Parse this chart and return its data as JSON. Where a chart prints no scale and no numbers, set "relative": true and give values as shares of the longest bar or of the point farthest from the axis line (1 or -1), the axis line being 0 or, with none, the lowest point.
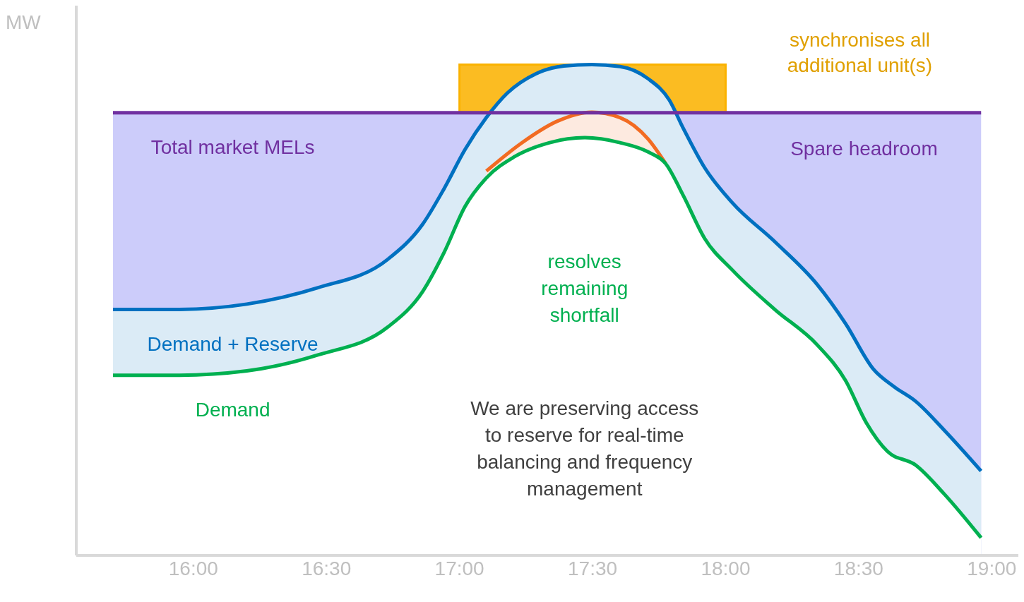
{
  "chart_data": {
    "type": "area",
    "relative": true,
    "ylabel": "MW",
    "xlim": [
      15.56,
      19.1
    ],
    "xticks": [
      {
        "value": 16,
        "label": "16:00"
      },
      {
        "value": 16.5,
        "label": "16:30"
      },
      {
        "value": 17,
        "label": "17:00"
      },
      {
        "value": 17.5,
        "label": "17:30"
      },
      {
        "value": 18,
        "label": "18:00"
      },
      {
        "value": 18.5,
        "label": "18:30"
      },
      {
        "value": 19,
        "label": "19:00"
      }
    ],
    "tick_labels": "x",
    "series": [
      {
        "name": "Total market MELs",
        "type": "line",
        "color": "#7030a0",
        "x": [
          15.698,
          18.96
        ],
        "values": [
          0.902,
          0.902
        ]
      },
      {
        "name": "Demand + Reserve",
        "color": "#0070c0",
        "x": [
          15.698,
          15.937,
          16.201,
          16.466,
          16.73,
          16.862,
          16.942,
          17.021,
          17.101,
          17.18,
          17.286,
          17.392,
          17.497,
          17.603,
          17.709,
          17.788,
          17.841,
          17.921,
          18.026,
          18.185,
          18.344,
          18.45,
          18.556,
          18.635,
          18.714,
          18.82,
          18.96
        ],
        "values": [
          0.501,
          0.501,
          0.512,
          0.545,
          0.603,
          0.675,
          0.747,
          0.827,
          0.892,
          0.942,
          0.981,
          0.997,
          1,
          0.996,
          0.971,
          0.928,
          0.87,
          0.79,
          0.718,
          0.639,
          0.552,
          0.473,
          0.379,
          0.343,
          0.314,
          0.256,
          0.172
        ]
      },
      {
        "color": "#f26b22",
        "x": [
          17.101,
          17.233,
          17.365,
          17.497,
          17.603,
          17.709,
          17.775
        ],
        "values": [
          0.783,
          0.84,
          0.884,
          0.903,
          0.892,
          0.848,
          0.798
        ]
      },
      {
        "name": "Demand",
        "color": "#00b050",
        "x": [
          15.698,
          15.937,
          16.201,
          16.466,
          16.73,
          16.862,
          16.942,
          17.021,
          17.101,
          17.206,
          17.339,
          17.471,
          17.603,
          17.709,
          17.775,
          17.841,
          17.921,
          18.026,
          18.185,
          18.344,
          18.45,
          18.529,
          18.608,
          18.714,
          18.82,
          18.96
        ],
        "values": [
          0.367,
          0.367,
          0.376,
          0.408,
          0.465,
          0.538,
          0.617,
          0.711,
          0.769,
          0.812,
          0.841,
          0.851,
          0.841,
          0.822,
          0.798,
          0.733,
          0.646,
          0.581,
          0.501,
          0.429,
          0.357,
          0.27,
          0.212,
          0.184,
          0.126,
          0.036
        ]
      }
    ],
    "bands": [
      {
        "axis": "y",
        "from": 0,
        "to": 0.902,
        "color": "#ccccfa"
      },
      {
        "axis": "x",
        "from": 17,
        "to": 18,
        "label": "synchronises all additional unit(s)",
        "color": "#fbbc22"
      }
    ],
    "annotations": [
      "Spare headroom",
      "resolves remaining shortfall",
      "We are preserving access to reserve for real-time balancing and frequency management"
    ]
  }
}
